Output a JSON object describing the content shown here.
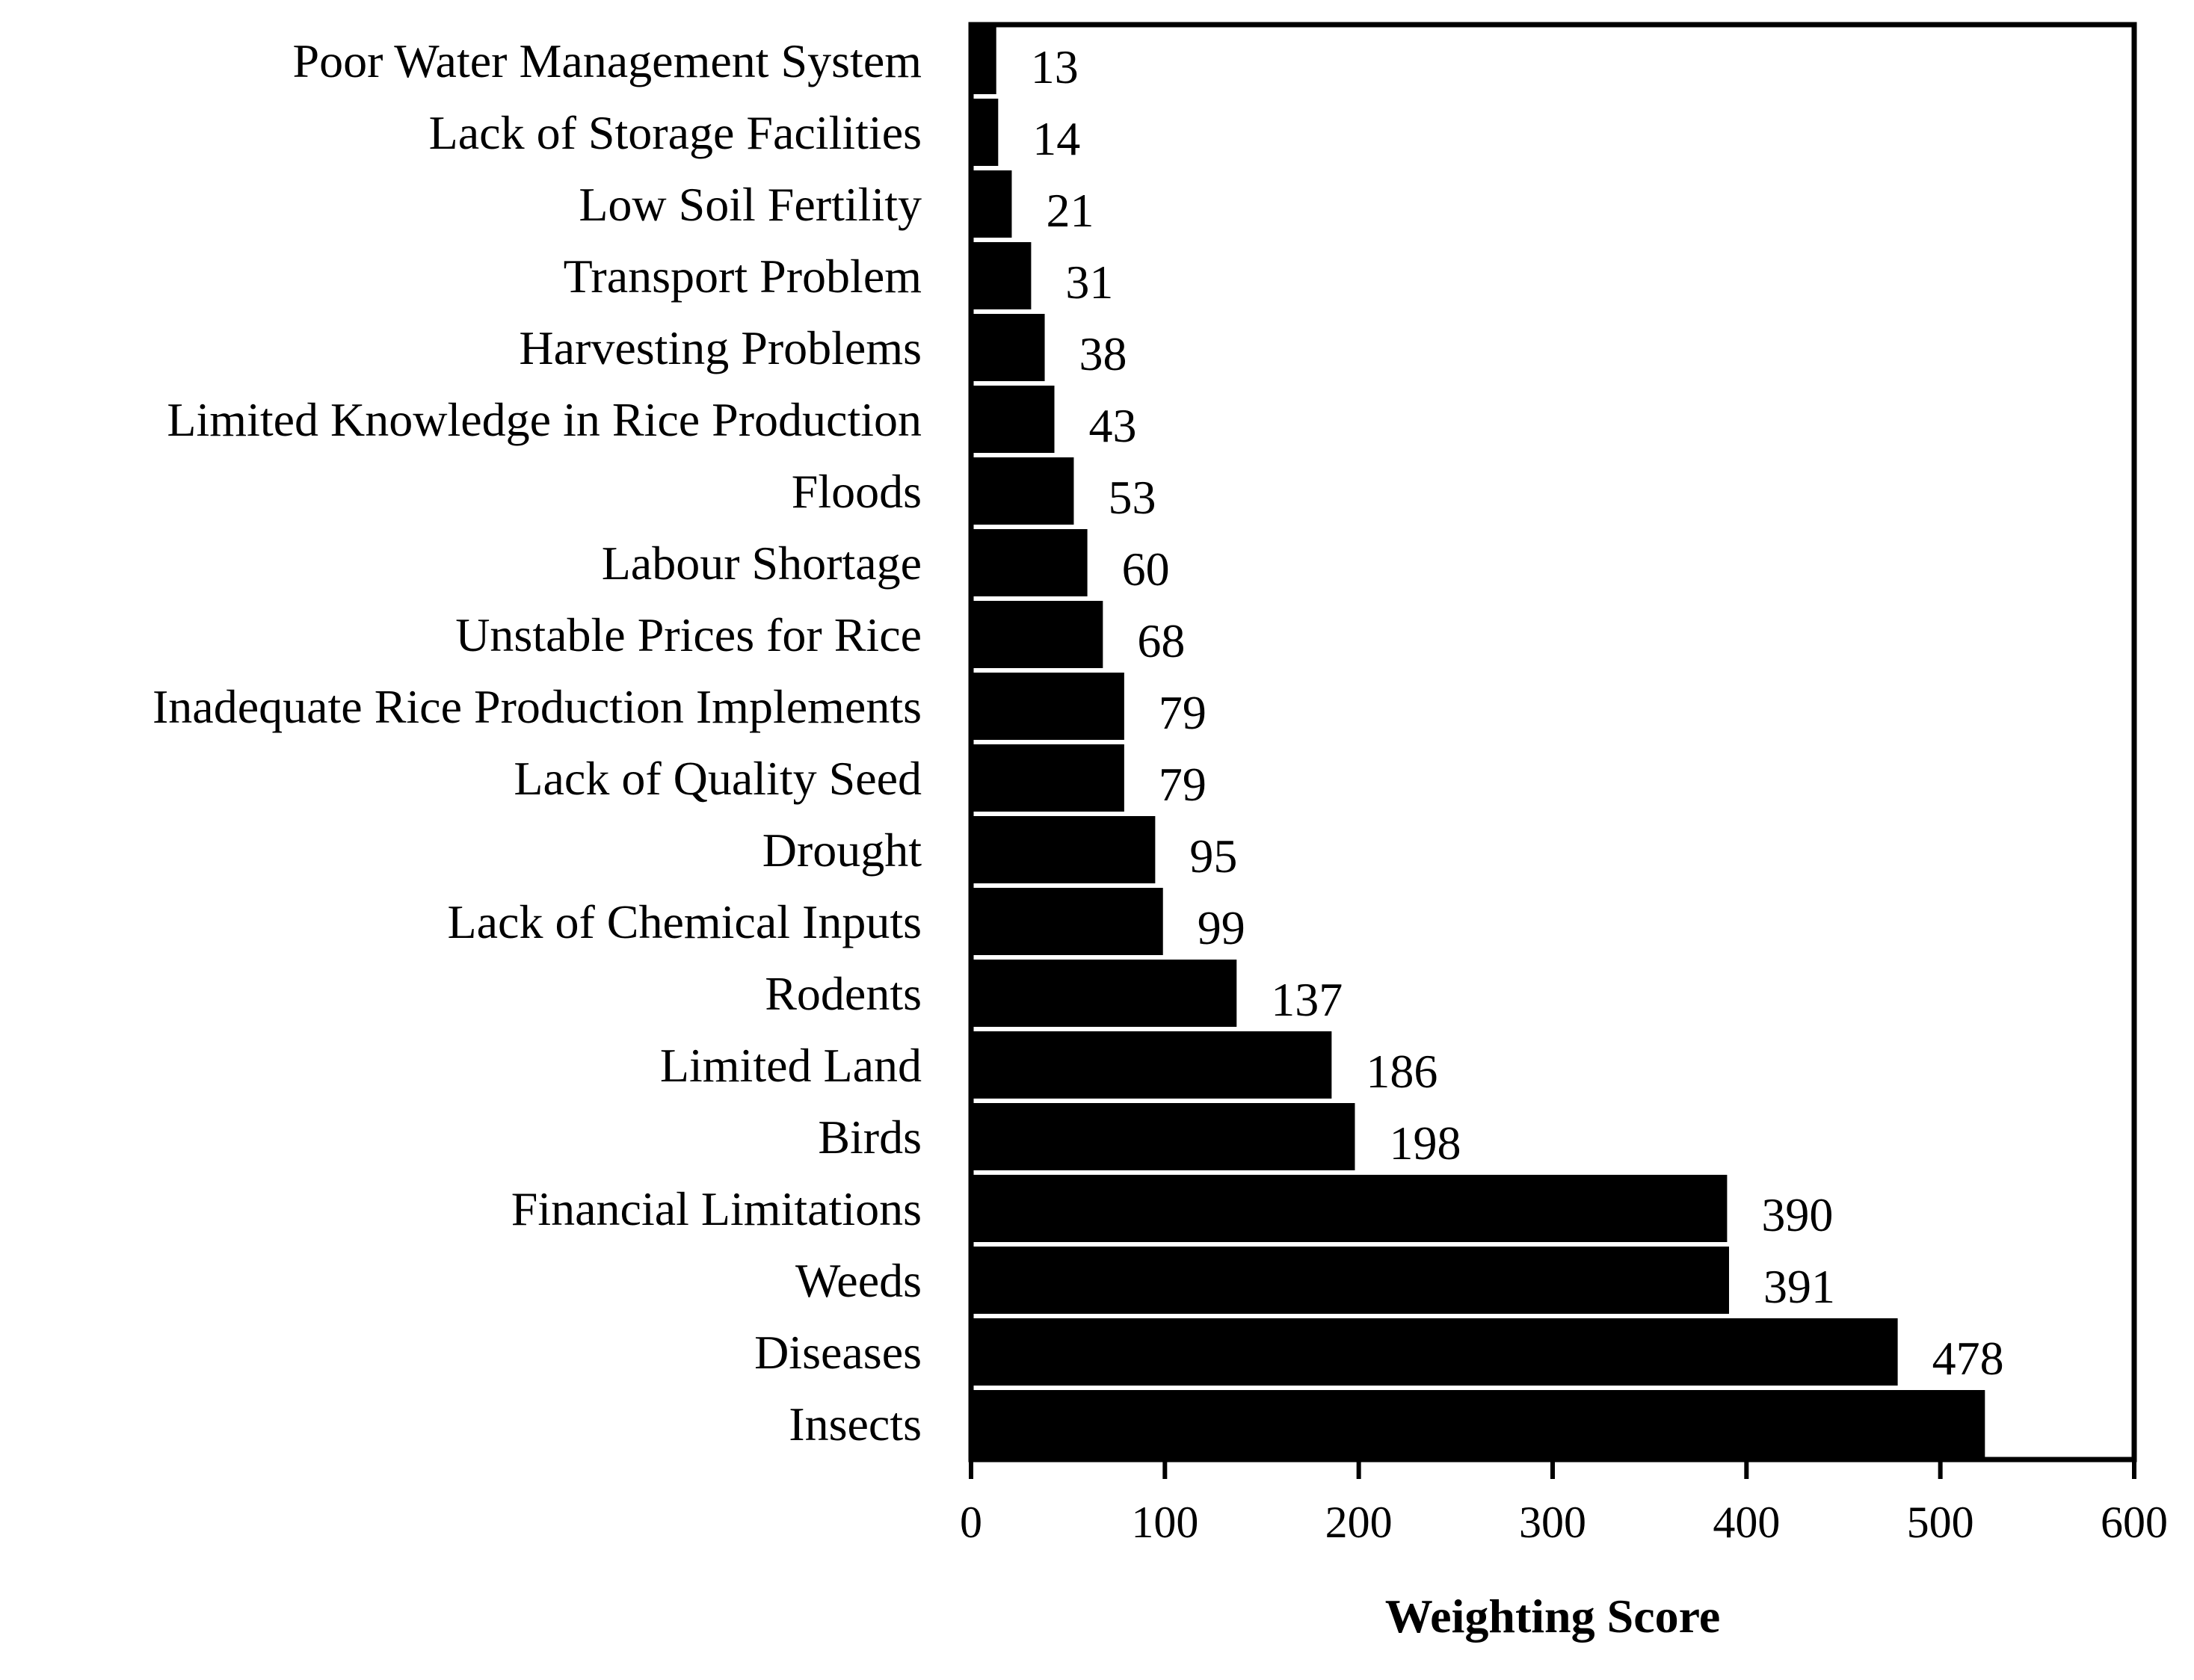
{
  "chart_data": {
    "type": "bar",
    "orientation": "horizontal",
    "categories": [
      "Poor Water Management System",
      "Lack of Storage Facilities",
      "Low Soil Fertility",
      "Transport Problem",
      "Harvesting Problems",
      "Limited Knowledge in Rice Production",
      "Floods",
      "Labour Shortage",
      "Unstable Prices for Rice",
      "Inadequate Rice Production Implements",
      "Lack of Quality Seed",
      "Drought",
      "Lack of Chemical Inputs",
      "Rodents",
      "Limited Land",
      "Birds",
      "Financial Limitations",
      "Weeds",
      "Diseases",
      "Insects"
    ],
    "values": [
      13,
      14,
      21,
      31,
      38,
      43,
      53,
      60,
      68,
      79,
      79,
      95,
      99,
      137,
      186,
      198,
      390,
      391,
      478,
      523
    ],
    "data_labels": [
      "13",
      "14",
      "21",
      "31",
      "38",
      "43",
      "53",
      "60",
      "68",
      "79",
      "79",
      "95",
      "99",
      "137",
      "186",
      "198",
      "390",
      "391",
      "478",
      ""
    ],
    "xlabel": "Weighting Score",
    "ylabel": "",
    "title": "",
    "xlim": [
      0,
      600
    ],
    "xticks": [
      "0",
      "100",
      "200",
      "300",
      "400",
      "500",
      "600"
    ],
    "grid": false,
    "bar_color": "#000000"
  }
}
